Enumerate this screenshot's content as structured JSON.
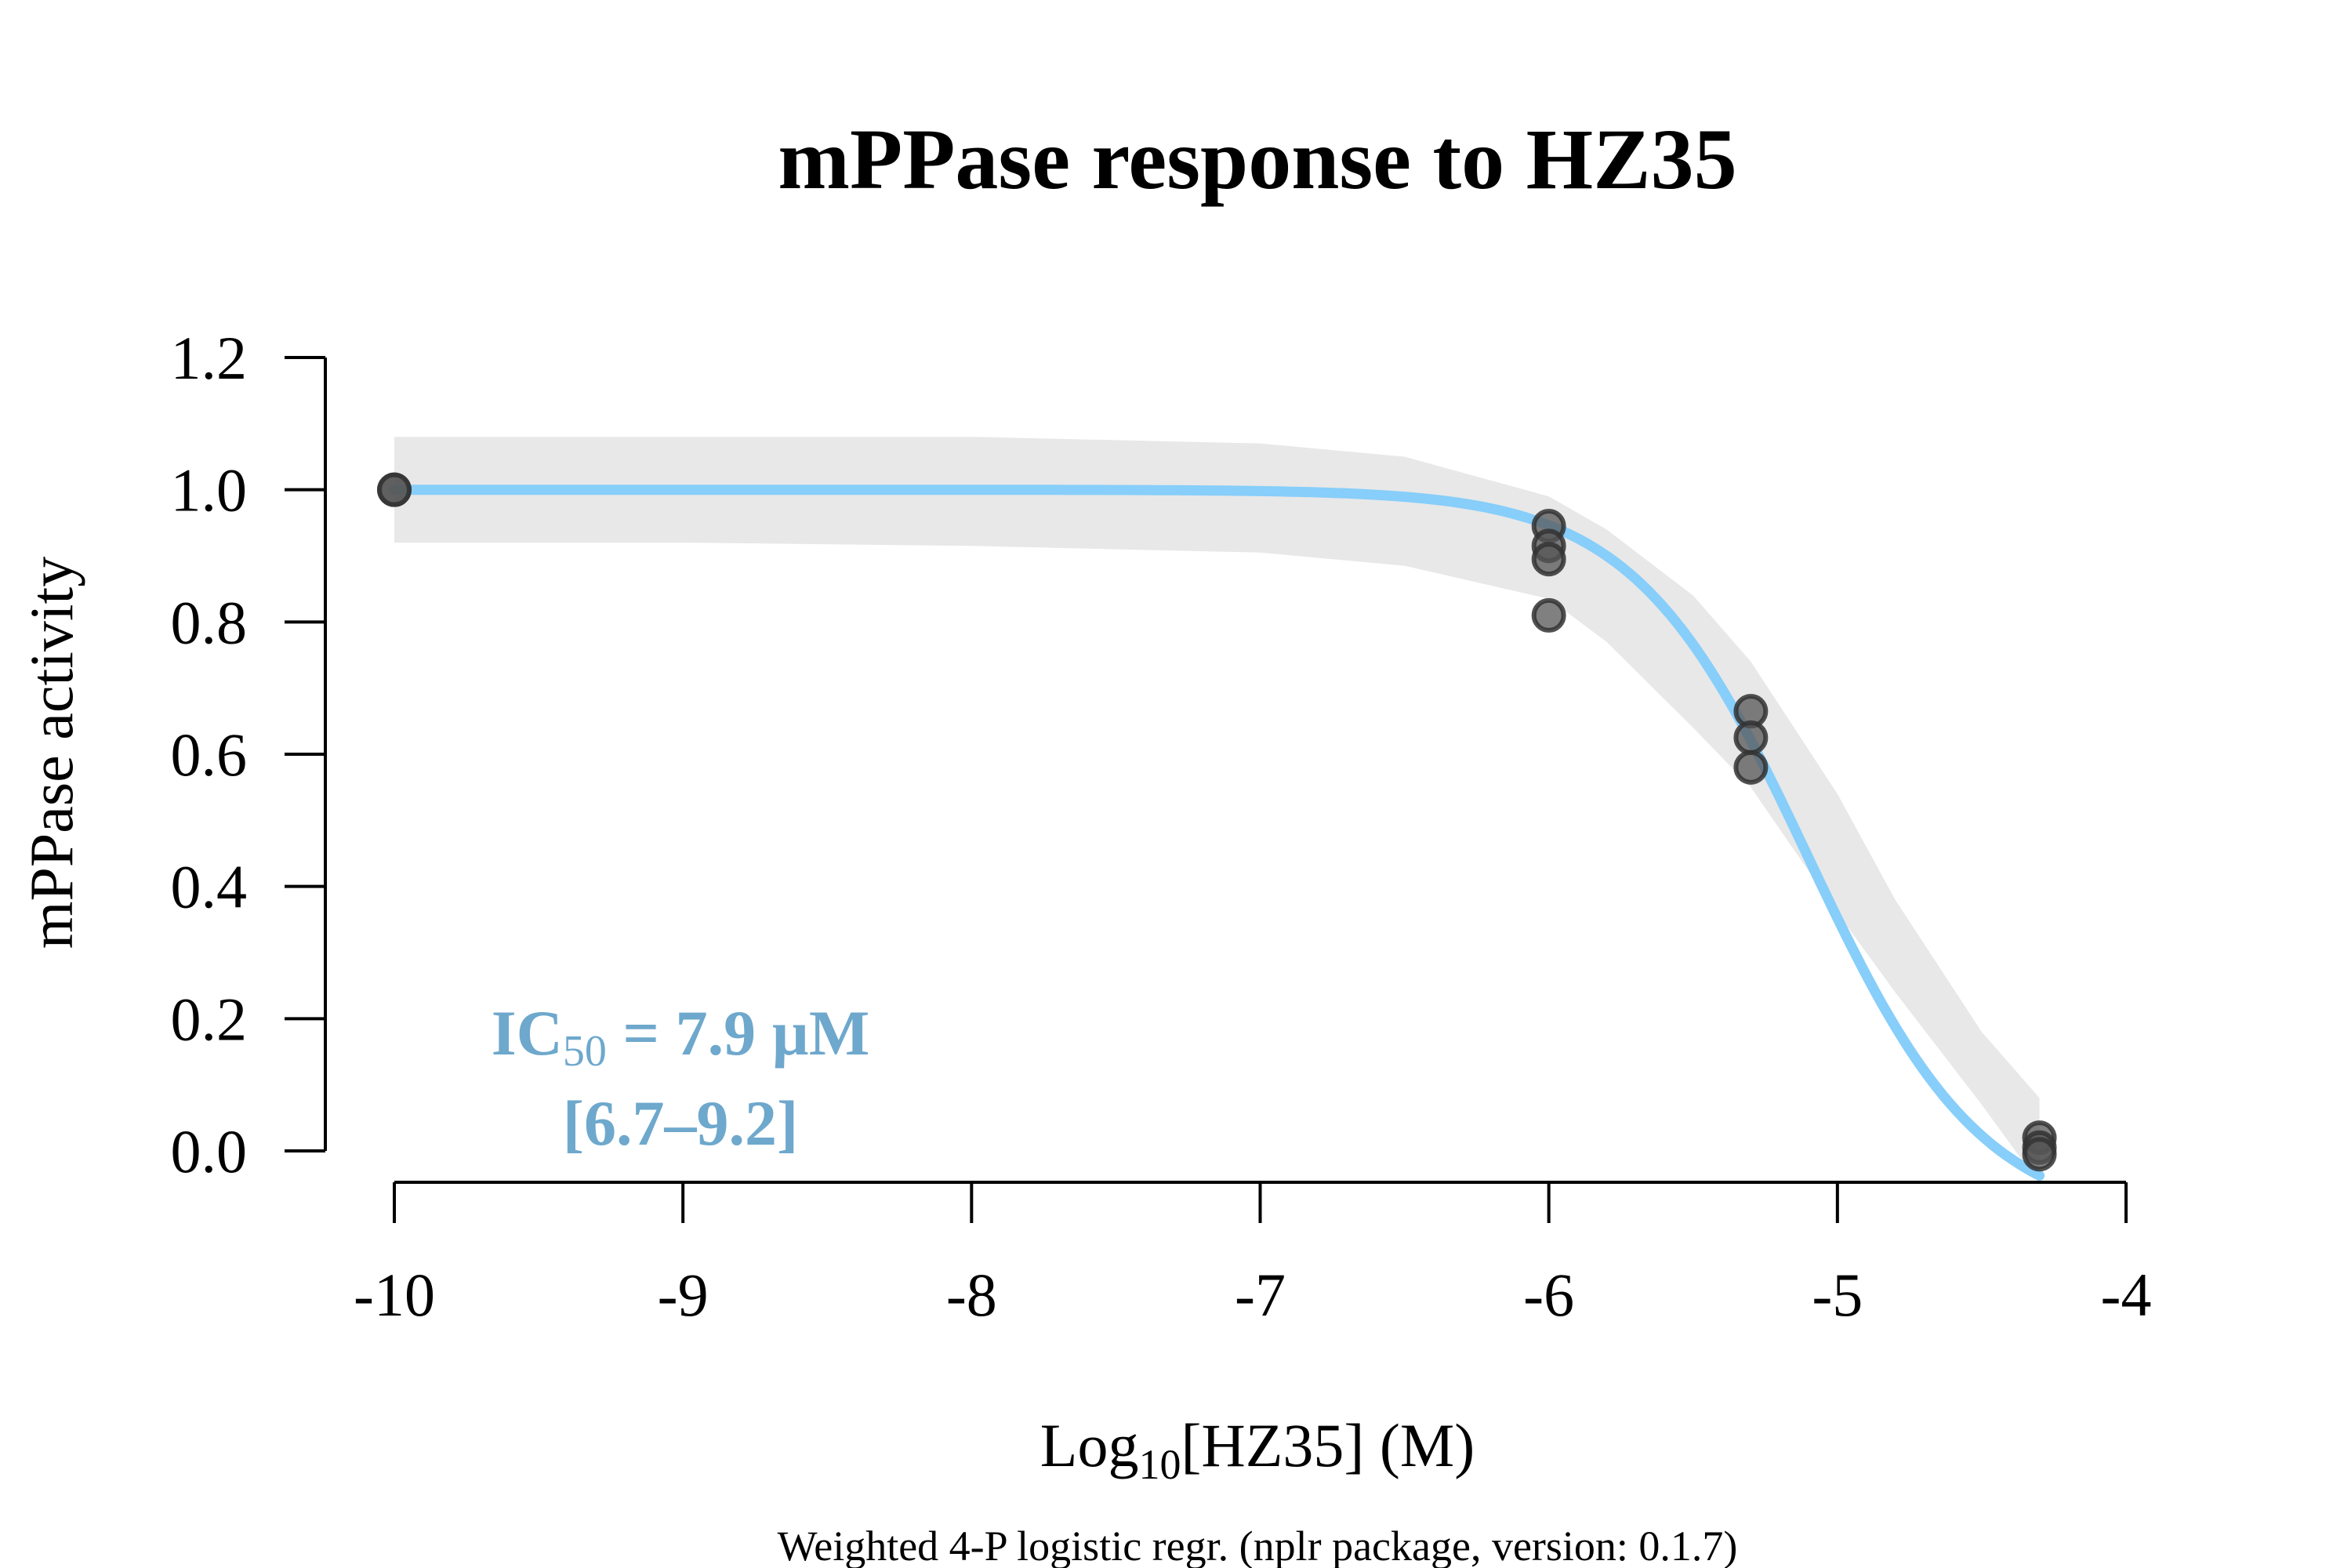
{
  "chart_data": {
    "type": "scatter",
    "title": "mPPase response to HZ35",
    "xlabel_main": "Log",
    "xlabel_sub": "10",
    "xlabel_rest": "[HZ35] (M)",
    "ylabel": "mPPase activity",
    "footnote": "Weighted 4-P logistic regr. (nplr package, version: 0.1.7)",
    "xlim": [
      -10,
      -4
    ],
    "ylim": [
      0,
      1.2
    ],
    "x_ticks": [
      -10,
      -9,
      -8,
      -7,
      -6,
      -5,
      -4
    ],
    "x_tick_labels": [
      "-10",
      "-9",
      "-8",
      "-7",
      "-6",
      "-5",
      "-4"
    ],
    "y_ticks": [
      0,
      0.2,
      0.4,
      0.6,
      0.8,
      1.0,
      1.2
    ],
    "y_tick_labels": [
      "0.0",
      "0.2",
      "0.4",
      "0.6",
      "0.8",
      "1.0",
      "1.2"
    ],
    "points": [
      {
        "x": -10,
        "y": 1.0
      },
      {
        "x": -10,
        "y": 1.0
      },
      {
        "x": -6,
        "y": 0.945
      },
      {
        "x": -6,
        "y": 0.915
      },
      {
        "x": -6,
        "y": 0.895
      },
      {
        "x": -6,
        "y": 0.81
      },
      {
        "x": -5.3,
        "y": 0.665
      },
      {
        "x": -5.3,
        "y": 0.625
      },
      {
        "x": -5.3,
        "y": 0.58
      },
      {
        "x": -4.3,
        "y": 0.02
      },
      {
        "x": -4.3,
        "y": 0.005
      },
      {
        "x": -4.3,
        "y": -0.005
      }
    ],
    "fit": {
      "model": "4-P logistic",
      "bottom": -0.11,
      "top": 1.0,
      "log_ic50": -5.102,
      "hill": 1.44,
      "x_range": [
        -10,
        -4.3
      ]
    },
    "confidence_band": {
      "x": [
        -10,
        -9,
        -8,
        -7,
        -6.5,
        -6,
        -5.8,
        -5.5,
        -5.3,
        -5.0,
        -4.8,
        -4.5,
        -4.3
      ],
      "lower": [
        0.92,
        0.92,
        0.915,
        0.905,
        0.885,
        0.835,
        0.77,
        0.64,
        0.55,
        0.36,
        0.24,
        0.07,
        -0.05
      ],
      "upper": [
        1.08,
        1.08,
        1.08,
        1.07,
        1.05,
        0.99,
        0.94,
        0.84,
        0.74,
        0.54,
        0.38,
        0.18,
        0.08
      ]
    },
    "annotation": {
      "line1_main": "IC",
      "line1_sub": "50",
      "line1_rest": " = 7.9 µM",
      "line2": "[6.7–9.2]",
      "anchor": {
        "x": -9.0,
        "y": 0.1
      }
    },
    "colors": {
      "curve": "#87cefa",
      "band": "#e8e8e8",
      "annotation": "#6ea8cc",
      "point_fill": "#555555",
      "point_stroke": "#333333"
    },
    "grid": false,
    "legend": "none"
  }
}
